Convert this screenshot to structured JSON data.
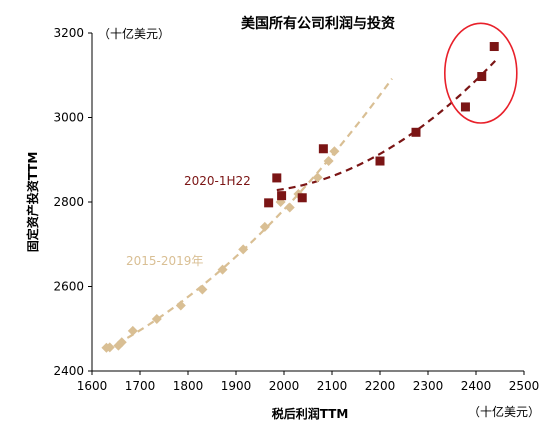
{
  "chart_data": {
    "type": "scatter",
    "title": "美国所有公司利润与投资",
    "ylabel": "固定资产投资TTM",
    "xlabel": "税后利润TTM",
    "y_unit": "（十亿美元）",
    "x_unit": "（十亿美元）",
    "xlim": [
      1600,
      2500
    ],
    "ylim": [
      2400,
      3200
    ],
    "x_ticks": [
      "1600",
      "1700",
      "1800",
      "1900",
      "2000",
      "2100",
      "2200",
      "2300",
      "2400",
      "2500"
    ],
    "y_ticks": [
      "2400",
      "2600",
      "2800",
      "3000",
      "3200"
    ],
    "grid": false,
    "series": [
      {
        "name": "2015-2019年",
        "color": "#d9bf94",
        "marker": "diamond",
        "points": [
          [
            1630,
            2455
          ],
          [
            1637,
            2456
          ],
          [
            1655,
            2460
          ],
          [
            1662,
            2468
          ],
          [
            1685,
            2495
          ],
          [
            1735,
            2523
          ],
          [
            1785,
            2555
          ],
          [
            1830,
            2593
          ],
          [
            1872,
            2640
          ],
          [
            1915,
            2688
          ],
          [
            1960,
            2741
          ],
          [
            1993,
            2800
          ],
          [
            2012,
            2787
          ],
          [
            2030,
            2819
          ],
          [
            2070,
            2858
          ],
          [
            2093,
            2897
          ],
          [
            2105,
            2920
          ]
        ],
        "trend": {
          "type": "quadratic",
          "x_range": [
            1630,
            2225
          ],
          "style": "dashed"
        }
      },
      {
        "name": "2020-1H22",
        "color": "#7b1515",
        "marker": "square",
        "points": [
          [
            1968,
            2798
          ],
          [
            1985,
            2857
          ],
          [
            1995,
            2815
          ],
          [
            2038,
            2810
          ],
          [
            2082,
            2926
          ],
          [
            2200,
            2897
          ],
          [
            2275,
            2965
          ],
          [
            2378,
            3025
          ],
          [
            2412,
            3097
          ],
          [
            2438,
            3168
          ]
        ],
        "trend": {
          "type": "quadratic",
          "x_range": [
            1985,
            2440
          ],
          "style": "dashed"
        }
      }
    ],
    "annotations": [
      {
        "type": "ellipse",
        "color": "#e8202a",
        "center": [
          2410,
          3105
        ],
        "radii": [
          75,
          118
        ]
      }
    ]
  }
}
